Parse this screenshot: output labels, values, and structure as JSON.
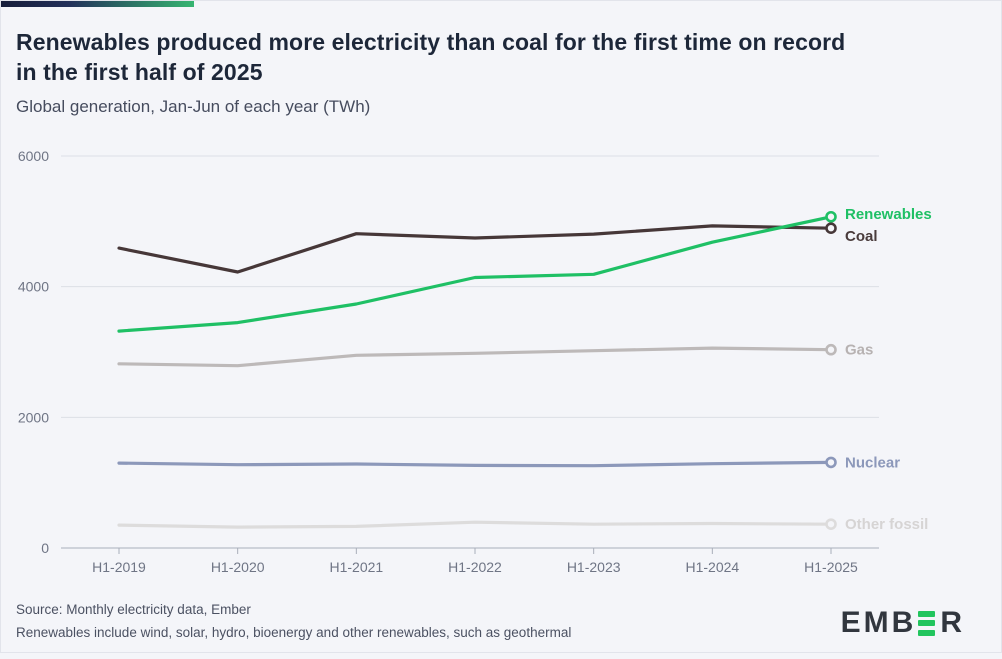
{
  "header": {
    "title_line1": "Renewables produced more electricity than coal for the first time on record",
    "title_line2": "in the first half of 2025",
    "subtitle": "Global generation, Jan-Jun of each year (TWh)"
  },
  "chart_data": {
    "type": "line",
    "units": "TWh",
    "categories": [
      "H1-2019",
      "H1-2020",
      "H1-2021",
      "H1-2022",
      "H1-2023",
      "H1-2024",
      "H1-2025"
    ],
    "series": [
      {
        "name": "Renewables",
        "color": "#1fc065",
        "label_color": "#1fc065",
        "values": [
          3320,
          3450,
          3735,
          4140,
          4190,
          4680,
          5070
        ],
        "label_dy": -3
      },
      {
        "name": "Coal",
        "color": "#463738",
        "label_color": "#4a3c3c",
        "values": [
          4590,
          4225,
          4810,
          4745,
          4805,
          4930,
          4895
        ],
        "label_dy": 8
      },
      {
        "name": "Gas",
        "color": "#bdb9b9",
        "label_color": "#b7b2b2",
        "values": [
          2820,
          2790,
          2950,
          2980,
          3020,
          3060,
          3035
        ],
        "label_dy": 0
      },
      {
        "name": "Nuclear",
        "color": "#8c98ba",
        "label_color": "#8c98ba",
        "values": [
          1300,
          1275,
          1285,
          1265,
          1260,
          1290,
          1310
        ],
        "label_dy": 0
      },
      {
        "name": "Other fossil",
        "color": "#dddcdc",
        "label_color": "#d6d4d4",
        "values": [
          350,
          320,
          330,
          395,
          365,
          375,
          365
        ],
        "label_dy": 0
      }
    ],
    "ylim": [
      0,
      6000
    ],
    "yticks": [
      0,
      2000,
      4000,
      6000
    ],
    "grid": true,
    "legend_position": "right-of-line-ends"
  },
  "colors": {
    "background": "#f4f5f9",
    "grid": "#dcdfe6",
    "axis": "#a9aeba",
    "axis_text": "#6f7585",
    "accent_green": "#22c55e",
    "accent_navy": "#161d3a"
  },
  "footer": {
    "source": "Source: Monthly electricity data, Ember",
    "note": "Renewables include wind, solar, hydro, bioenergy and other renewables, such as geothermal"
  },
  "logo": {
    "prefix": "EMB",
    "suffix": "R",
    "alt": "EMBER"
  }
}
